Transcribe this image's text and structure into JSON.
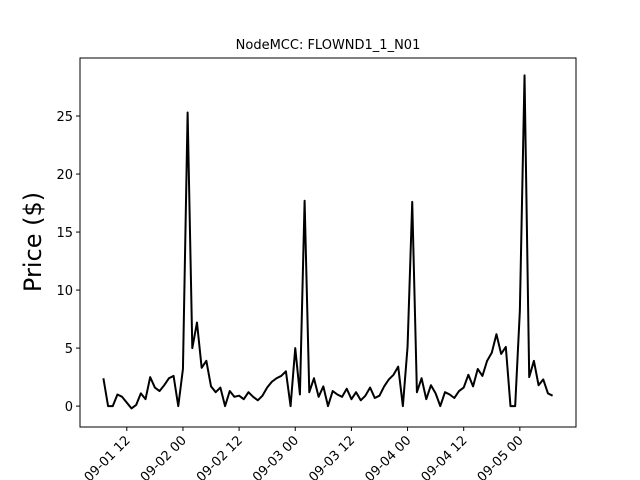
{
  "chart_data": {
    "type": "line",
    "title": "NodeMCC: FLOWND1_1_N01",
    "y_label": "Price ($)",
    "color": "#000000",
    "x": [
      "09-01 07",
      "09-01 08",
      "09-01 09",
      "09-01 10",
      "09-01 11",
      "09-01 12",
      "09-01 13",
      "09-01 14",
      "09-01 15",
      "09-01 16",
      "09-01 17",
      "09-01 18",
      "09-01 19",
      "09-01 20",
      "09-01 21",
      "09-01 22",
      "09-01 23",
      "09-02 00",
      "09-02 01",
      "09-02 02",
      "09-02 03",
      "09-02 04",
      "09-02 05",
      "09-02 06",
      "09-02 07",
      "09-02 08",
      "09-02 09",
      "09-02 10",
      "09-02 11",
      "09-02 12",
      "09-02 13",
      "09-02 14",
      "09-02 15",
      "09-02 16",
      "09-02 17",
      "09-02 18",
      "09-02 19",
      "09-02 20",
      "09-02 21",
      "09-02 22",
      "09-02 23",
      "09-03 00",
      "09-03 01",
      "09-03 02",
      "09-03 03",
      "09-03 04",
      "09-03 05",
      "09-03 06",
      "09-03 07",
      "09-03 08",
      "09-03 09",
      "09-03 10",
      "09-03 11",
      "09-03 12",
      "09-03 13",
      "09-03 14",
      "09-03 15",
      "09-03 16",
      "09-03 17",
      "09-03 18",
      "09-03 19",
      "09-03 20",
      "09-03 21",
      "09-03 22",
      "09-03 23",
      "09-04 00",
      "09-04 01",
      "09-04 02",
      "09-04 03",
      "09-04 04",
      "09-04 05",
      "09-04 06",
      "09-04 07",
      "09-04 08",
      "09-04 09",
      "09-04 10",
      "09-04 11",
      "09-04 12",
      "09-04 13",
      "09-04 14",
      "09-04 15",
      "09-04 16",
      "09-04 17",
      "09-04 18",
      "09-04 19",
      "09-04 20",
      "09-04 21",
      "09-04 22",
      "09-04 23",
      "09-05 00",
      "09-05 01",
      "09-05 02",
      "09-05 03",
      "09-05 04",
      "09-05 05",
      "09-05 06",
      "09-05 07"
    ],
    "values": [
      2.4,
      0,
      0,
      1.0,
      0.8,
      0.3,
      -0.2,
      0.1,
      1.1,
      0.6,
      2.5,
      1.6,
      1.3,
      1.8,
      2.4,
      2.6,
      0,
      3.2,
      25.3,
      5.0,
      7.2,
      3.3,
      3.9,
      1.7,
      1.2,
      1.6,
      0,
      1.3,
      0.8,
      0.9,
      0.6,
      1.2,
      0.8,
      0.5,
      0.9,
      1.6,
      2.1,
      2.4,
      2.6,
      3.0,
      0,
      5.0,
      1.0,
      17.7,
      1.2,
      2.4,
      0.8,
      1.7,
      0,
      1.3,
      1.0,
      0.8,
      1.5,
      0.6,
      1.2,
      0.5,
      0.9,
      1.6,
      0.7,
      0.9,
      1.7,
      2.3,
      2.7,
      3.4,
      0,
      5.1,
      17.6,
      1.2,
      2.4,
      0.6,
      1.8,
      1.1,
      0,
      1.2,
      1.0,
      0.7,
      1.3,
      1.6,
      2.7,
      1.7,
      3.2,
      2.6,
      3.9,
      4.6,
      6.2,
      4.5,
      5.1,
      0,
      0,
      8.2,
      28.5,
      2.5,
      3.9,
      1.8,
      2.3,
      1.1,
      0.9
    ],
    "xlim": [
      "09-01 02",
      "09-05 12"
    ],
    "xticks": [
      "09-01 12",
      "09-02 00",
      "09-02 12",
      "09-03 00",
      "09-03 12",
      "09-04 00",
      "09-04 12",
      "09-05 00"
    ],
    "ylim": [
      -1.8,
      30
    ],
    "yticks": [
      0,
      5,
      10,
      15,
      20,
      25
    ]
  }
}
